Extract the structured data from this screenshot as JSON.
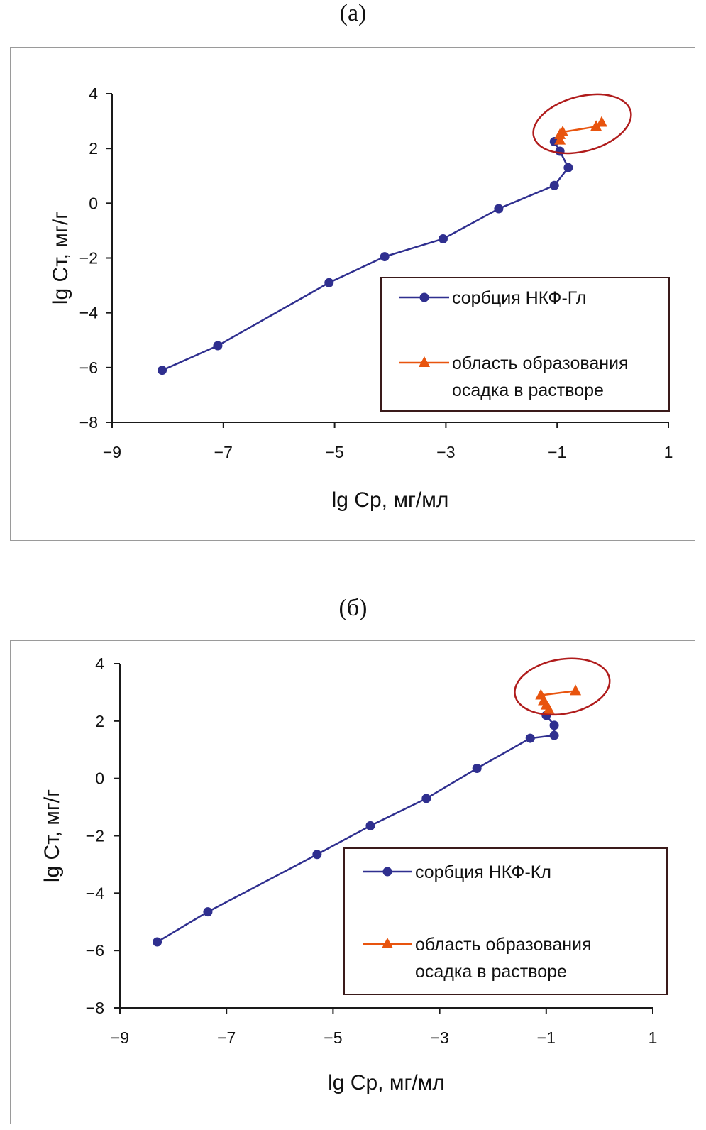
{
  "chart_data": [
    {
      "panel_label": "(а)",
      "type": "line",
      "xlabel": "lg Cр, мг/мл",
      "ylabel": "lg Cт, мг/г",
      "xlim": [
        -9,
        1
      ],
      "ylim": [
        -8,
        4
      ],
      "xticks": [
        -9,
        -7,
        -5,
        -3,
        -1,
        1
      ],
      "yticks": [
        -8,
        -6,
        -4,
        -2,
        0,
        2,
        4
      ],
      "xtick_labels": [
        "−9",
        "−7",
        "−5",
        "−3",
        "−1",
        "1"
      ],
      "ytick_labels": [
        "−8",
        "−6",
        "−4",
        "−2",
        "0",
        "2",
        "4"
      ],
      "series": [
        {
          "name": "сорбция НКФ-Гл",
          "color": "#2f2f8f",
          "marker": "circle",
          "points": [
            [
              -8.1,
              -6.1
            ],
            [
              -7.1,
              -5.2
            ],
            [
              -5.1,
              -2.9
            ],
            [
              -4.1,
              -1.95
            ],
            [
              -3.05,
              -1.3
            ],
            [
              -2.05,
              -0.2
            ],
            [
              -1.05,
              0.65
            ],
            [
              -0.8,
              1.3
            ],
            [
              -0.95,
              1.9
            ],
            [
              -1.05,
              2.25
            ]
          ]
        },
        {
          "name": "область образования",
          "name_line2": "осадка в растворе",
          "color": "#e8540e",
          "marker": "triangle",
          "points": [
            [
              -0.95,
              2.3
            ],
            [
              -0.95,
              2.5
            ],
            [
              -0.9,
              2.6
            ],
            [
              -0.3,
              2.8
            ],
            [
              -0.2,
              2.95
            ]
          ]
        }
      ],
      "highlight_ellipse": {
        "color": "#b01c1c",
        "cx": -0.55,
        "cy": 2.9,
        "rx": 0.9,
        "ry": 1.0,
        "rotate": -15
      },
      "legend_position": "bottom-right"
    },
    {
      "panel_label": "(б)",
      "type": "line",
      "xlabel": "lg Cр, мг/мл",
      "ylabel": "lg Cт, мг/г",
      "xlim": [
        -9,
        1
      ],
      "ylim": [
        -8,
        4
      ],
      "xticks": [
        -9,
        -7,
        -5,
        -3,
        -1,
        1
      ],
      "yticks": [
        -8,
        -6,
        -4,
        -2,
        0,
        2,
        4
      ],
      "xtick_labels": [
        "−9",
        "−7",
        "−5",
        "−3",
        "−1",
        "1"
      ],
      "ytick_labels": [
        "−8",
        "−6",
        "−4",
        "−2",
        "0",
        "2",
        "4"
      ],
      "series": [
        {
          "name": "сорбция НКФ-Кл",
          "color": "#2f2f8f",
          "marker": "circle",
          "points": [
            [
              -8.3,
              -5.7
            ],
            [
              -7.35,
              -4.65
            ],
            [
              -5.3,
              -2.65
            ],
            [
              -4.3,
              -1.65
            ],
            [
              -3.25,
              -0.7
            ],
            [
              -2.3,
              0.35
            ],
            [
              -1.3,
              1.4
            ],
            [
              -0.85,
              1.5
            ],
            [
              -0.85,
              1.85
            ],
            [
              -1.0,
              2.2
            ]
          ]
        },
        {
          "name": "область образования",
          "name_line2": "осадка в растворе",
          "color": "#e8540e",
          "marker": "triangle",
          "points": [
            [
              -0.95,
              2.4
            ],
            [
              -1.0,
              2.55
            ],
            [
              -1.05,
              2.7
            ],
            [
              -1.1,
              2.9
            ],
            [
              -0.45,
              3.05
            ]
          ]
        }
      ],
      "highlight_ellipse": {
        "color": "#b01c1c",
        "cx": -0.7,
        "cy": 3.2,
        "rx": 0.9,
        "ry": 0.95,
        "rotate": -10
      },
      "legend_position": "bottom-right"
    }
  ]
}
